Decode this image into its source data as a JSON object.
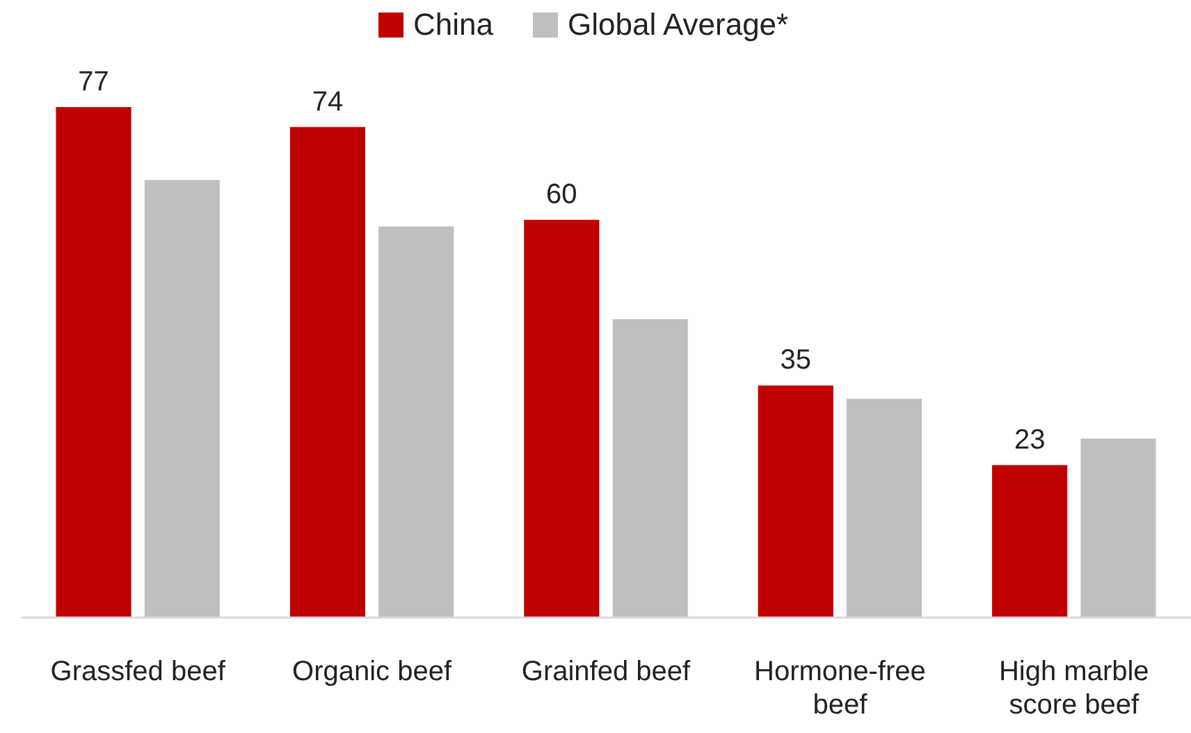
{
  "chart_data": {
    "type": "bar",
    "categories": [
      "Grassfed beef",
      "Organic beef",
      "Grainfed beef",
      "Hormone-free beef",
      "High marble score beef"
    ],
    "series": [
      {
        "name": "China",
        "color": "#c00000",
        "values": [
          77,
          74,
          60,
          35,
          23
        ],
        "value_labels": [
          "77",
          "74",
          "60",
          "35",
          "23"
        ]
      },
      {
        "name": "Global Average*",
        "color": "#bfbfbf",
        "values": [
          66,
          59,
          45,
          33,
          27
        ]
      }
    ],
    "legend": "top"
  }
}
